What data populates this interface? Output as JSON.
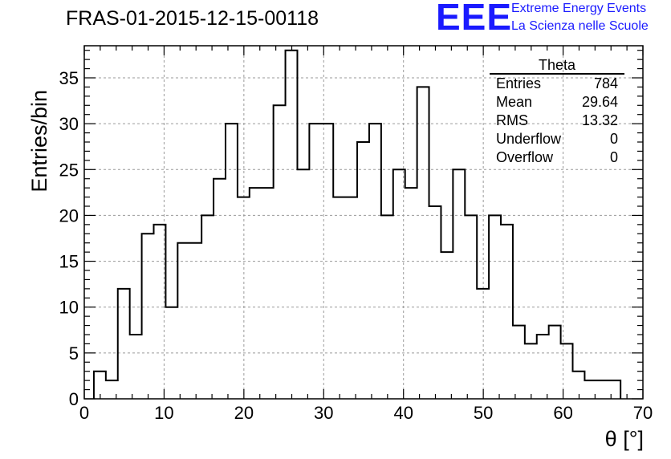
{
  "title": "FRAS-01-2015-12-15-00118",
  "logo": {
    "mark": "EEE",
    "line1": "Extreme Energy Events",
    "line2": "La Scienza nelle Scuole",
    "color": "#1a1aff"
  },
  "stats_box": {
    "title": "Theta",
    "rows": [
      {
        "label": "Entries",
        "value": "784"
      },
      {
        "label": "Mean",
        "value": "29.64"
      },
      {
        "label": "RMS",
        "value": "13.32"
      },
      {
        "label": "Underflow",
        "value": "0"
      },
      {
        "label": "Overflow",
        "value": "0"
      }
    ]
  },
  "chart_data": {
    "type": "bar",
    "style": "step histogram",
    "xlabel": "θ [°]",
    "ylabel": "Entries/bin",
    "xlim": [
      0,
      70
    ],
    "ylim": [
      0,
      38.5
    ],
    "grid": true,
    "xticks": [
      0,
      10,
      20,
      30,
      40,
      50,
      60,
      70
    ],
    "yticks": [
      0,
      5,
      10,
      15,
      20,
      25,
      30,
      35
    ],
    "bin_start": 1.2,
    "bin_width": 1.5,
    "values": [
      3,
      2,
      12,
      7,
      18,
      19,
      10,
      17,
      17,
      20,
      24,
      30,
      22,
      23,
      23,
      32,
      38,
      25,
      30,
      30,
      22,
      22,
      28,
      30,
      20,
      25,
      23,
      34,
      21,
      16,
      25,
      20,
      12,
      20,
      19,
      8,
      6,
      7,
      8,
      6,
      3,
      2,
      2,
      2
    ]
  }
}
